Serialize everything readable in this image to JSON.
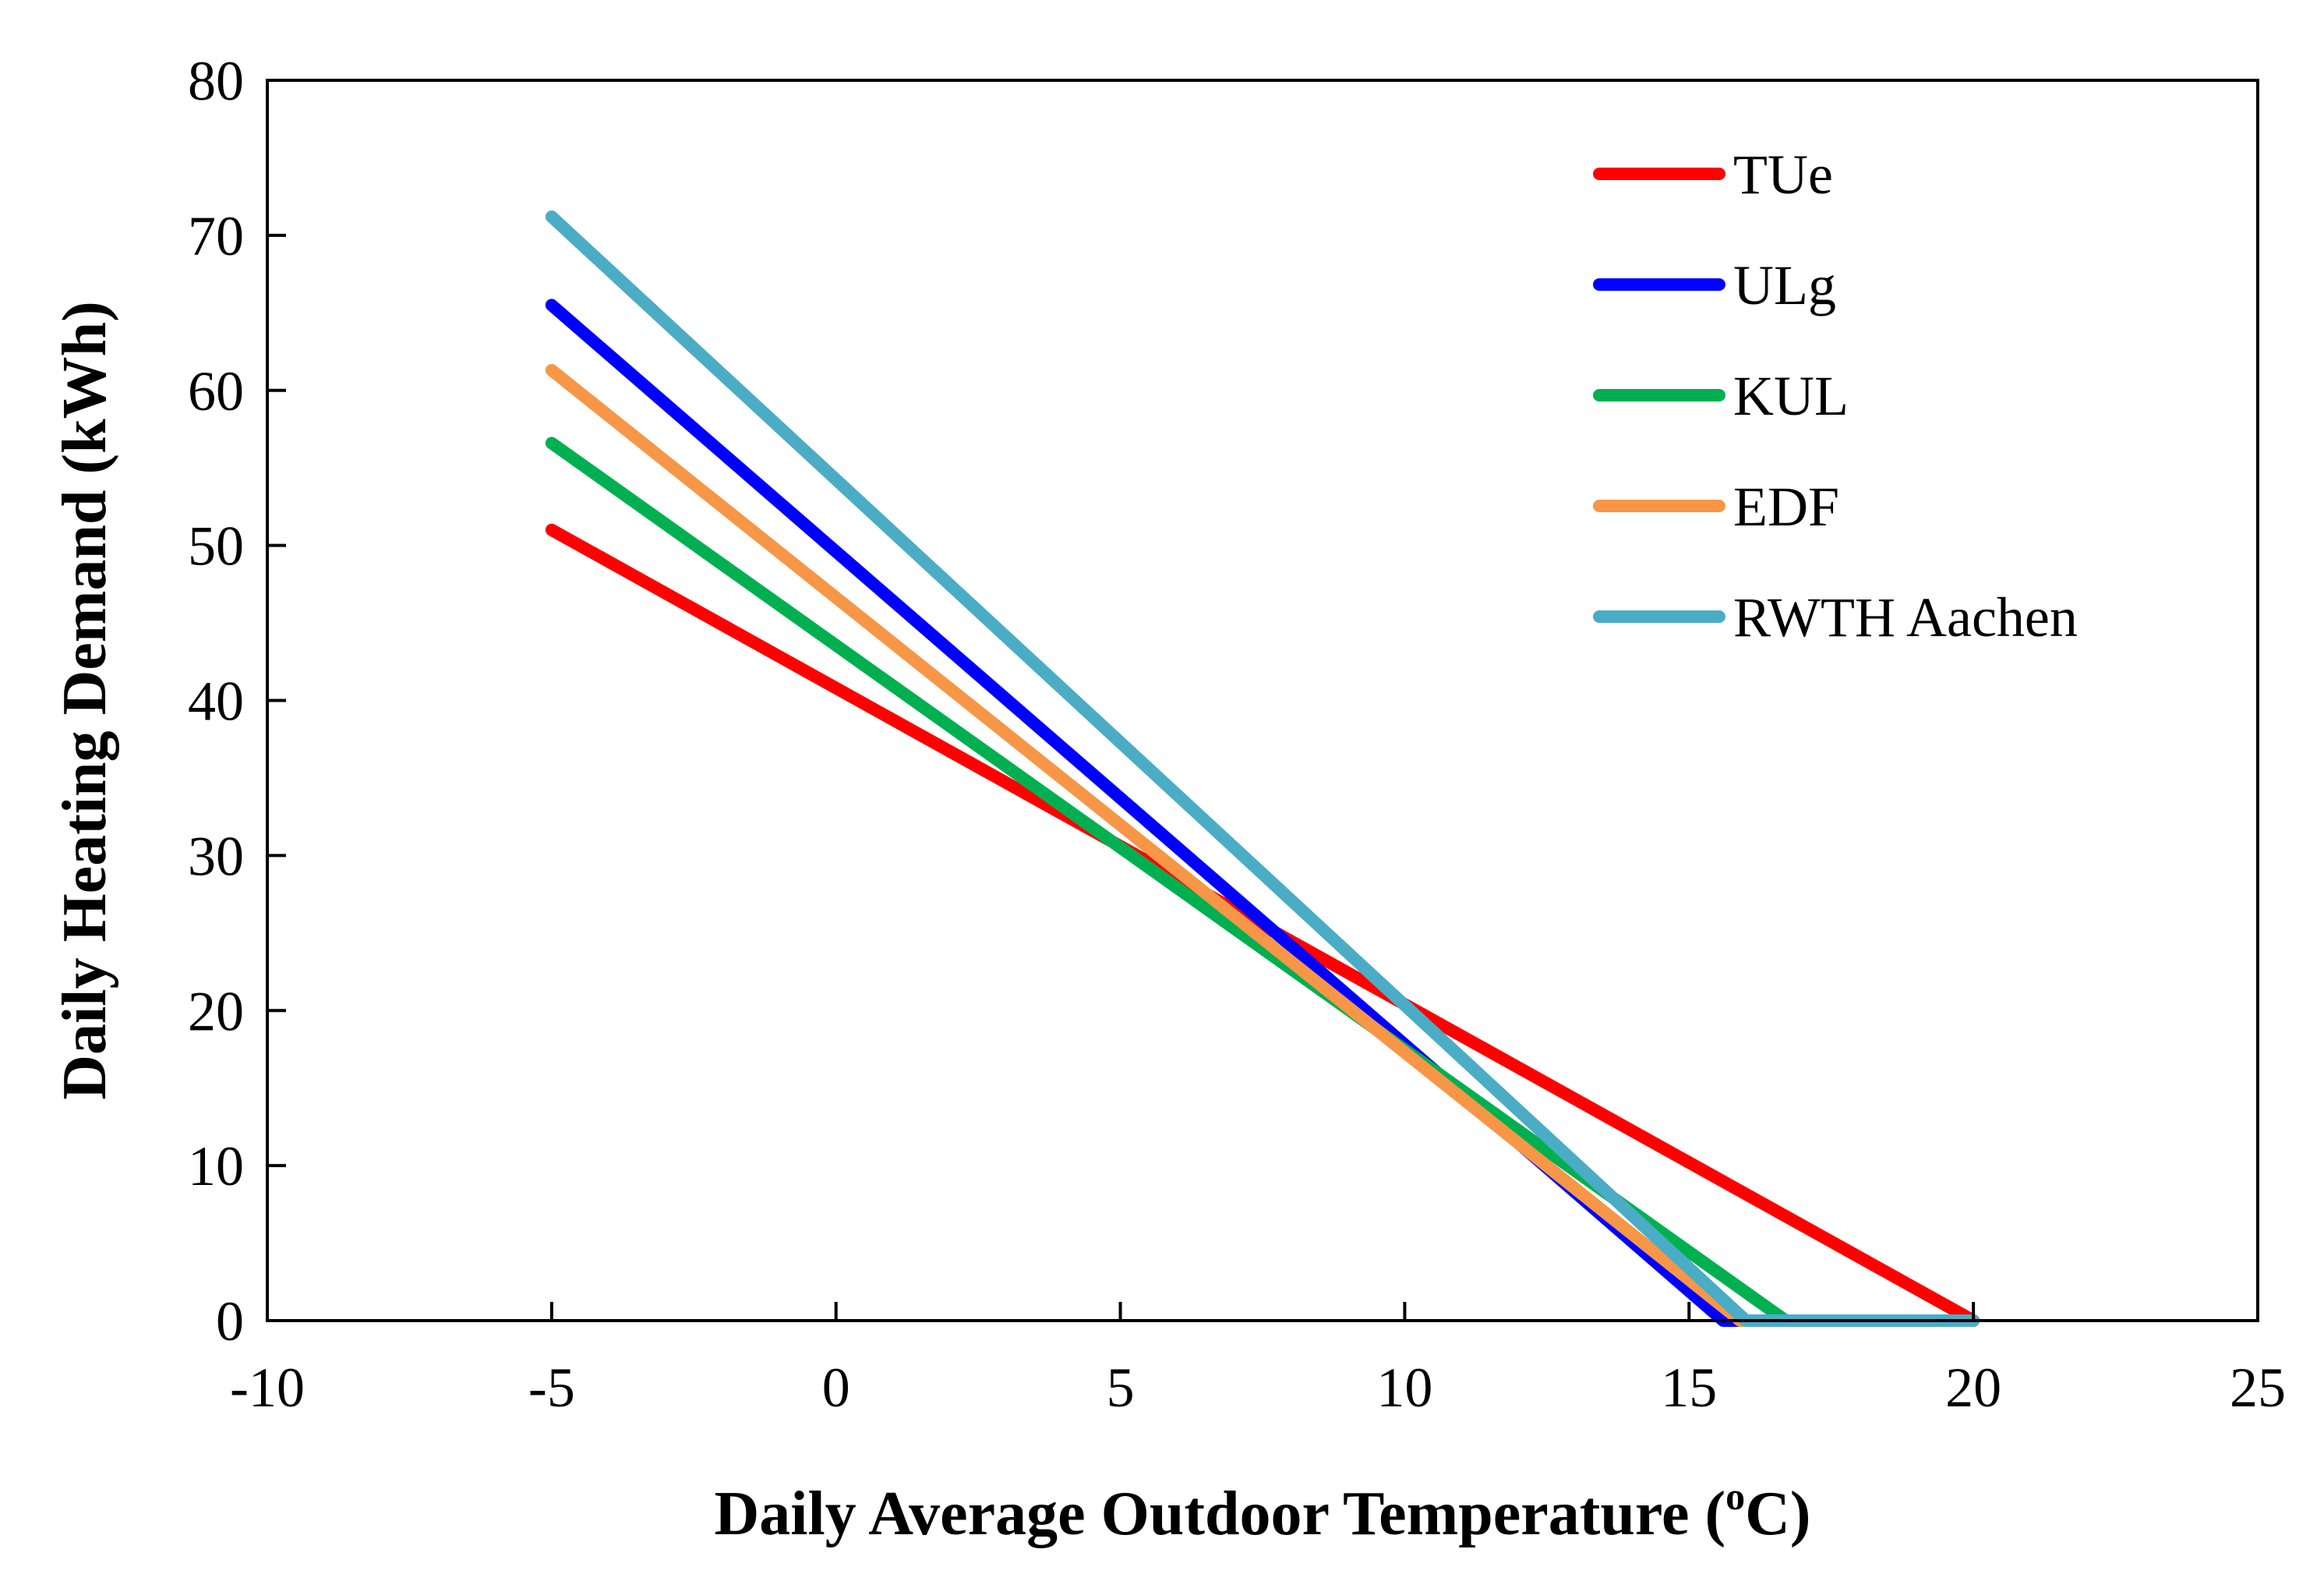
{
  "chart_data": {
    "type": "line",
    "xlabel": "Daily Average Outdoor Temperature (",
    "xlabel_sup": "o",
    "xlabel_suffix": "C)",
    "ylabel": "Daily Heating Demand (kWh)",
    "xlim": [
      -10,
      25
    ],
    "ylim": [
      0,
      80
    ],
    "xticks": [
      -10,
      -5,
      0,
      5,
      10,
      15,
      20,
      25
    ],
    "yticks": [
      0,
      10,
      20,
      30,
      40,
      50,
      60,
      70,
      80
    ],
    "grid": false,
    "legend_position": "top-right",
    "series": [
      {
        "name": "TUe",
        "color": "#ff0000",
        "x": [
          -5,
          20
        ],
        "y": [
          51,
          0
        ]
      },
      {
        "name": "ULg",
        "color": "#0000ff",
        "x": [
          -5,
          15.6,
          16
        ],
        "y": [
          65.5,
          0,
          0
        ]
      },
      {
        "name": "KUL",
        "color": "#00b050",
        "x": [
          -5,
          16.7,
          20
        ],
        "y": [
          56.6,
          0,
          0
        ]
      },
      {
        "name": "EDF",
        "color": "#f79646",
        "x": [
          -5,
          15.9,
          16
        ],
        "y": [
          61.3,
          0,
          0
        ]
      },
      {
        "name": "RWTH Aachen",
        "color": "#4bacc6",
        "x": [
          -5,
          16,
          20
        ],
        "y": [
          71.2,
          0,
          0
        ]
      }
    ]
  }
}
